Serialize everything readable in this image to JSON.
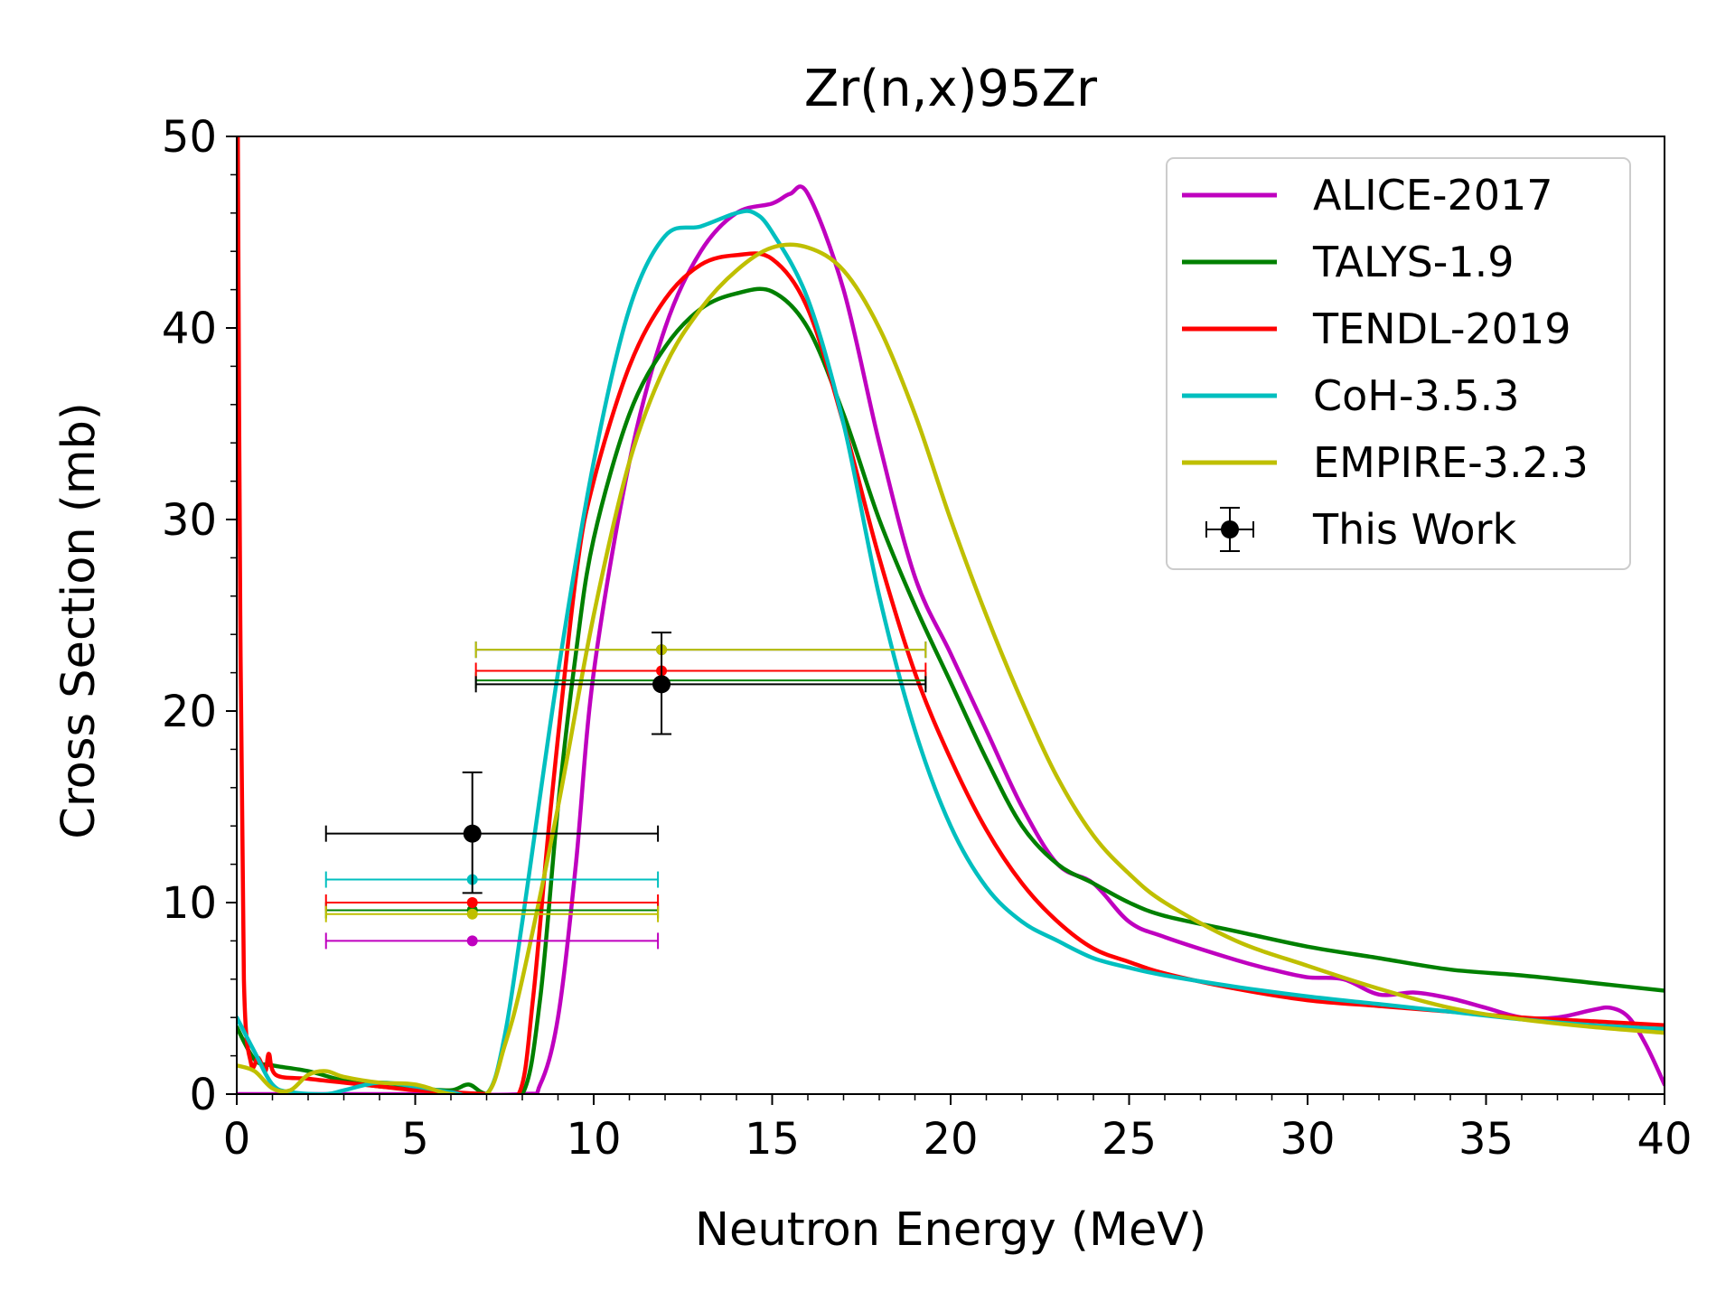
{
  "chart_data": {
    "type": "line",
    "title": "Zr(n,x)95Zr",
    "xlabel": "Neutron Energy (MeV)",
    "ylabel": "Cross Section (mb)",
    "xlim": [
      0,
      40
    ],
    "ylim": [
      0,
      50
    ],
    "xticks": [
      0,
      5,
      10,
      15,
      20,
      25,
      30,
      35,
      40
    ],
    "yticks": [
      0,
      10,
      20,
      30,
      40,
      50
    ],
    "grid": false,
    "legend_position": "top-right",
    "series": [
      {
        "name": "ALICE-2017",
        "color": "#bf00bf",
        "points": [
          [
            0,
            0
          ],
          [
            5,
            0
          ],
          [
            8,
            0
          ],
          [
            8.5,
            0.5
          ],
          [
            9,
            4
          ],
          [
            9.5,
            12
          ],
          [
            10,
            22
          ],
          [
            11,
            33
          ],
          [
            12,
            40
          ],
          [
            13,
            44
          ],
          [
            14,
            46
          ],
          [
            15,
            46.5
          ],
          [
            15.5,
            47
          ],
          [
            16,
            47
          ],
          [
            17,
            42
          ],
          [
            18,
            34
          ],
          [
            19,
            27
          ],
          [
            20,
            23
          ],
          [
            21,
            19
          ],
          [
            22,
            15
          ],
          [
            23,
            12
          ],
          [
            24,
            11
          ],
          [
            25,
            9
          ],
          [
            26,
            8.2
          ],
          [
            28,
            7
          ],
          [
            29,
            6.5
          ],
          [
            30,
            6.1
          ],
          [
            31,
            6
          ],
          [
            32,
            5.2
          ],
          [
            33,
            5.3
          ],
          [
            34,
            5
          ],
          [
            35,
            4.5
          ],
          [
            36,
            4
          ],
          [
            37,
            4
          ],
          [
            38,
            4.4
          ],
          [
            38.5,
            4.5
          ],
          [
            39,
            4
          ],
          [
            39.5,
            2.5
          ],
          [
            40,
            0.5
          ]
        ]
      },
      {
        "name": "TALYS-1.9",
        "color": "#008000",
        "points": [
          [
            0,
            3.5
          ],
          [
            0.5,
            1.8
          ],
          [
            1,
            1.5
          ],
          [
            2,
            1.2
          ],
          [
            3,
            0.7
          ],
          [
            4,
            0.4
          ],
          [
            5,
            0.3
          ],
          [
            6,
            0.2
          ],
          [
            6.5,
            0.5
          ],
          [
            7,
            0
          ],
          [
            8,
            0
          ],
          [
            8.5,
            5
          ],
          [
            9,
            15
          ],
          [
            9.5,
            23
          ],
          [
            10,
            29
          ],
          [
            11,
            35.5
          ],
          [
            12,
            39
          ],
          [
            13,
            41
          ],
          [
            14,
            41.8
          ],
          [
            15,
            41.9
          ],
          [
            16,
            40
          ],
          [
            17,
            35.5
          ],
          [
            18,
            30
          ],
          [
            19,
            25.5
          ],
          [
            20,
            21.5
          ],
          [
            21,
            17.5
          ],
          [
            22,
            14
          ],
          [
            23,
            12
          ],
          [
            24,
            11
          ],
          [
            25,
            10
          ],
          [
            26,
            9.3
          ],
          [
            28,
            8.5
          ],
          [
            30,
            7.7
          ],
          [
            32,
            7.1
          ],
          [
            34,
            6.5
          ],
          [
            36,
            6.2
          ],
          [
            38,
            5.8
          ],
          [
            40,
            5.4
          ]
        ]
      },
      {
        "name": "TENDL-2019",
        "color": "#ff0000",
        "points": [
          [
            0.03,
            50
          ],
          [
            0.1,
            25
          ],
          [
            0.2,
            6
          ],
          [
            0.4,
            1.6
          ],
          [
            0.6,
            1.9
          ],
          [
            0.8,
            1.2
          ],
          [
            0.9,
            2.1
          ],
          [
            1.1,
            1
          ],
          [
            2,
            0.8
          ],
          [
            3,
            0.6
          ],
          [
            4,
            0.4
          ],
          [
            5,
            0.2
          ],
          [
            6,
            0.1
          ],
          [
            7,
            0
          ],
          [
            7.9,
            0
          ],
          [
            8.3,
            5
          ],
          [
            8.8,
            15
          ],
          [
            9.5,
            27
          ],
          [
            10,
            32
          ],
          [
            11,
            38
          ],
          [
            12,
            41.5
          ],
          [
            13,
            43.3
          ],
          [
            14,
            43.8
          ],
          [
            15,
            43.6
          ],
          [
            16,
            41
          ],
          [
            17,
            35
          ],
          [
            18,
            28
          ],
          [
            19,
            22
          ],
          [
            20,
            17.5
          ],
          [
            21,
            13.8
          ],
          [
            22,
            11
          ],
          [
            23,
            9
          ],
          [
            24,
            7.6
          ],
          [
            25,
            6.9
          ],
          [
            26,
            6.3
          ],
          [
            28,
            5.5
          ],
          [
            30,
            4.9
          ],
          [
            32,
            4.6
          ],
          [
            34,
            4.3
          ],
          [
            36,
            4
          ],
          [
            38,
            3.8
          ],
          [
            40,
            3.6
          ]
        ]
      },
      {
        "name": "CoH-3.5.3",
        "color": "#00bfbf",
        "points": [
          [
            0,
            4
          ],
          [
            0.5,
            2.2
          ],
          [
            1,
            0.5
          ],
          [
            1.5,
            0.1
          ],
          [
            2.5,
            0
          ],
          [
            3,
            0.2
          ],
          [
            4,
            0.6
          ],
          [
            5,
            0.4
          ],
          [
            6,
            0.1
          ],
          [
            7,
            0
          ],
          [
            7.5,
            3
          ],
          [
            8,
            9
          ],
          [
            9,
            22
          ],
          [
            10,
            33
          ],
          [
            11,
            41
          ],
          [
            12,
            44.8
          ],
          [
            13,
            45.3
          ],
          [
            14,
            46
          ],
          [
            14.5,
            46
          ],
          [
            15,
            45
          ],
          [
            16,
            41.5
          ],
          [
            17,
            35
          ],
          [
            18,
            26
          ],
          [
            19,
            19
          ],
          [
            20,
            14
          ],
          [
            21,
            10.8
          ],
          [
            22,
            9
          ],
          [
            23,
            8
          ],
          [
            24,
            7.1
          ],
          [
            25,
            6.6
          ],
          [
            26,
            6.2
          ],
          [
            28,
            5.6
          ],
          [
            30,
            5.1
          ],
          [
            32,
            4.7
          ],
          [
            34,
            4.3
          ],
          [
            36,
            3.9
          ],
          [
            38,
            3.6
          ],
          [
            40,
            3.4
          ]
        ]
      },
      {
        "name": "EMPIRE-3.2.3",
        "color": "#bfbf00",
        "points": [
          [
            0,
            1.5
          ],
          [
            0.5,
            1.2
          ],
          [
            1,
            0.3
          ],
          [
            1.5,
            0.2
          ],
          [
            2,
            1
          ],
          [
            2.5,
            1.2
          ],
          [
            3,
            0.9
          ],
          [
            4,
            0.6
          ],
          [
            5,
            0.5
          ],
          [
            6,
            0
          ],
          [
            7,
            0
          ],
          [
            7.5,
            2.5
          ],
          [
            8,
            6
          ],
          [
            9,
            15
          ],
          [
            10,
            25
          ],
          [
            11,
            33
          ],
          [
            12,
            38
          ],
          [
            13,
            41
          ],
          [
            14,
            43
          ],
          [
            15,
            44.2
          ],
          [
            16,
            44.2
          ],
          [
            17,
            43
          ],
          [
            18,
            40
          ],
          [
            19,
            35.5
          ],
          [
            20,
            30
          ],
          [
            21,
            25
          ],
          [
            22,
            20.5
          ],
          [
            23,
            16.5
          ],
          [
            24,
            13.5
          ],
          [
            25,
            11.5
          ],
          [
            26,
            10
          ],
          [
            28,
            8
          ],
          [
            30,
            6.7
          ],
          [
            32,
            5.5
          ],
          [
            34,
            4.5
          ],
          [
            36,
            3.9
          ],
          [
            38,
            3.5
          ],
          [
            40,
            3.2
          ]
        ]
      }
    ],
    "experimental": {
      "name": "This Work",
      "color": "#000000",
      "points": [
        {
          "x": 6.6,
          "y": 13.6,
          "xerr_low": 4.1,
          "xerr_high": 5.2,
          "yerr_low": 3.1,
          "yerr_high": 3.2
        },
        {
          "x": 11.9,
          "y": 21.4,
          "xerr_low": 5.2,
          "xerr_high": 7.4,
          "yerr_low": 2.6,
          "yerr_high": 2.7
        }
      ]
    },
    "model_markers": [
      {
        "series": "ALICE-2017",
        "color": "#bf00bf",
        "points": [
          {
            "x": 6.6,
            "y": 8.0,
            "xmin": 2.5,
            "xmax": 11.8
          },
          {
            "x": 11.9,
            "y": 23.2,
            "xmin": 6.7,
            "xmax": 19.3
          }
        ]
      },
      {
        "series": "TALYS-1.9",
        "color": "#008000",
        "points": [
          {
            "x": 6.6,
            "y": 9.6,
            "xmin": 2.5,
            "xmax": 11.8
          },
          {
            "x": 11.9,
            "y": 21.6,
            "xmin": 6.7,
            "xmax": 19.3
          }
        ]
      },
      {
        "series": "TENDL-2019",
        "color": "#ff0000",
        "points": [
          {
            "x": 6.6,
            "y": 10.0,
            "xmin": 2.5,
            "xmax": 11.8
          },
          {
            "x": 11.9,
            "y": 22.1,
            "xmin": 6.7,
            "xmax": 19.3
          }
        ]
      },
      {
        "series": "CoH-3.5.3",
        "color": "#00bfbf",
        "points": [
          {
            "x": 6.6,
            "y": 11.2,
            "xmin": 2.5,
            "xmax": 11.8
          },
          {
            "x": 11.9,
            "y": 23.2,
            "xmin": 6.7,
            "xmax": 19.3
          }
        ]
      },
      {
        "series": "EMPIRE-3.2.3",
        "color": "#bfbf00",
        "points": [
          {
            "x": 6.6,
            "y": 9.4,
            "xmin": 2.5,
            "xmax": 11.8
          },
          {
            "x": 11.9,
            "y": 23.2,
            "xmin": 6.7,
            "xmax": 19.3
          }
        ]
      }
    ]
  }
}
